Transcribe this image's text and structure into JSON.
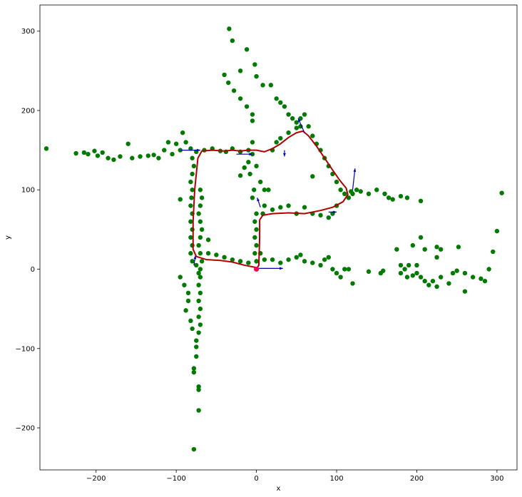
{
  "chart_data": {
    "type": "scatter",
    "title": "",
    "xlabel": "x",
    "ylabel": "y",
    "xlim": [
      -270,
      325
    ],
    "ylim": [
      -253,
      333
    ],
    "x_ticks": [
      -200,
      -100,
      0,
      100,
      200,
      300
    ],
    "y_ticks": [
      -200,
      -100,
      0,
      100,
      200,
      300
    ],
    "x_tick_labels": [
      "−200",
      "−100",
      "0",
      "100",
      "200",
      "300"
    ],
    "y_tick_labels": [
      "−200",
      "−100",
      "0",
      "100",
      "200",
      "300"
    ],
    "grid": false,
    "legend": false,
    "colors": {
      "points": "#007a00",
      "trajectory": "#b00000",
      "arrows": "#0000aa",
      "origin": "#ff0050"
    },
    "series": [
      {
        "kind": "scatter",
        "points": [
          [
            -262,
            152
          ],
          [
            -225,
            146
          ],
          [
            -215,
            147
          ],
          [
            -210,
            145
          ],
          [
            -202,
            149
          ],
          [
            -198,
            143
          ],
          [
            -192,
            147
          ],
          [
            -185,
            140
          ],
          [
            -178,
            138
          ],
          [
            -170,
            142
          ],
          [
            -160,
            158
          ],
          [
            -155,
            140
          ],
          [
            -145,
            142
          ],
          [
            -135,
            143
          ],
          [
            -128,
            144
          ],
          [
            -122,
            140
          ],
          [
            -115,
            150
          ],
          [
            -110,
            160
          ],
          [
            -105,
            145
          ],
          [
            -100,
            158
          ],
          [
            -95,
            150
          ],
          [
            -92,
            172
          ],
          [
            -88,
            160
          ],
          [
            -82,
            152
          ],
          [
            -75,
            148
          ],
          [
            -65,
            150
          ],
          [
            -55,
            152
          ],
          [
            -45,
            149
          ],
          [
            -38,
            148
          ],
          [
            -30,
            152
          ],
          [
            -20,
            148
          ],
          [
            -10,
            150
          ],
          [
            -5,
            187
          ],
          [
            -5,
            160
          ],
          [
            -5,
            145
          ],
          [
            -10,
            135
          ],
          [
            -15,
            128
          ],
          [
            -20,
            118
          ],
          [
            -8,
            120
          ],
          [
            0,
            130
          ],
          [
            5,
            110
          ],
          [
            10,
            100
          ],
          [
            15,
            100
          ],
          [
            20,
            150
          ],
          [
            25,
            160
          ],
          [
            30,
            165
          ],
          [
            40,
            172
          ],
          [
            50,
            178
          ],
          [
            55,
            190
          ],
          [
            60,
            195
          ],
          [
            65,
            180
          ],
          [
            70,
            168
          ],
          [
            75,
            158
          ],
          [
            80,
            150
          ],
          [
            85,
            140
          ],
          [
            90,
            130
          ],
          [
            95,
            120
          ],
          [
            100,
            110
          ],
          [
            105,
            100
          ],
          [
            110,
            95
          ],
          [
            115,
            90
          ],
          [
            118,
            98
          ],
          [
            120,
            95
          ],
          [
            125,
            100
          ],
          [
            130,
            98
          ],
          [
            140,
            95
          ],
          [
            150,
            100
          ],
          [
            160,
            95
          ],
          [
            165,
            90
          ],
          [
            170,
            88
          ],
          [
            180,
            92
          ],
          [
            188,
            90
          ],
          [
            205,
            86
          ],
          [
            306,
            96
          ],
          [
            -40,
            245
          ],
          [
            -35,
            235
          ],
          [
            -28,
            225
          ],
          [
            -20,
            215
          ],
          [
            -12,
            205
          ],
          [
            -5,
            195
          ],
          [
            -20,
            250
          ],
          [
            -30,
            288
          ],
          [
            -34,
            303
          ],
          [
            -12,
            277
          ],
          [
            -2,
            258
          ],
          [
            0,
            243
          ],
          [
            8,
            232
          ],
          [
            18,
            232
          ],
          [
            25,
            215
          ],
          [
            30,
            210
          ],
          [
            35,
            205
          ],
          [
            40,
            195
          ],
          [
            45,
            190
          ],
          [
            50,
            185
          ],
          [
            55,
            180
          ],
          [
            -80,
            140
          ],
          [
            -78,
            130
          ],
          [
            -80,
            120
          ],
          [
            -82,
            110
          ],
          [
            -80,
            100
          ],
          [
            -81,
            90
          ],
          [
            -82,
            80
          ],
          [
            -80,
            70
          ],
          [
            -82,
            60
          ],
          [
            -80,
            50
          ],
          [
            -82,
            40
          ],
          [
            -80,
            30
          ],
          [
            -82,
            20
          ],
          [
            -80,
            10
          ],
          [
            -75,
            5
          ],
          [
            -70,
            100
          ],
          [
            -68,
            90
          ],
          [
            -70,
            80
          ],
          [
            -72,
            70
          ],
          [
            -70,
            60
          ],
          [
            -68,
            50
          ],
          [
            -70,
            40
          ],
          [
            -72,
            30
          ],
          [
            -70,
            20
          ],
          [
            -68,
            10
          ],
          [
            -95,
            88
          ],
          [
            -60,
            37
          ],
          [
            -70,
            0
          ],
          [
            -72,
            -5
          ],
          [
            -70,
            -10
          ],
          [
            -72,
            -20
          ],
          [
            -70,
            -30
          ],
          [
            -72,
            -40
          ],
          [
            -70,
            -50
          ],
          [
            -72,
            -60
          ],
          [
            -70,
            -70
          ],
          [
            -72,
            -80
          ],
          [
            -75,
            -90
          ],
          [
            -75,
            -98
          ],
          [
            -75,
            -110
          ],
          [
            -78,
            -125
          ],
          [
            -78,
            -130
          ],
          [
            -72,
            -148
          ],
          [
            -72,
            -152
          ],
          [
            -72,
            -178
          ],
          [
            -78,
            -227
          ],
          [
            -85,
            -40
          ],
          [
            -88,
            -52
          ],
          [
            -82,
            -65
          ],
          [
            -80,
            -75
          ],
          [
            -85,
            -30
          ],
          [
            -90,
            -20
          ],
          [
            -95,
            -10
          ],
          [
            -60,
            20
          ],
          [
            -50,
            18
          ],
          [
            -40,
            15
          ],
          [
            -30,
            12
          ],
          [
            -20,
            10
          ],
          [
            -10,
            8
          ],
          [
            0,
            10
          ],
          [
            10,
            12
          ],
          [
            20,
            12
          ],
          [
            30,
            8
          ],
          [
            40,
            12
          ],
          [
            50,
            15
          ],
          [
            55,
            18
          ],
          [
            60,
            10
          ],
          [
            70,
            8
          ],
          [
            80,
            5
          ],
          [
            85,
            12
          ],
          [
            90,
            15
          ],
          [
            95,
            0
          ],
          [
            100,
            -5
          ],
          [
            105,
            -10
          ],
          [
            110,
            0
          ],
          [
            115,
            0
          ],
          [
            120,
            -18
          ],
          [
            0,
            70
          ],
          [
            -2,
            60
          ],
          [
            0,
            50
          ],
          [
            -2,
            40
          ],
          [
            0,
            30
          ],
          [
            -2,
            20
          ],
          [
            5,
            20
          ],
          [
            8,
            70
          ],
          [
            10,
            80
          ],
          [
            20,
            75
          ],
          [
            30,
            78
          ],
          [
            40,
            80
          ],
          [
            50,
            70
          ],
          [
            60,
            78
          ],
          [
            70,
            70
          ],
          [
            80,
            68
          ],
          [
            90,
            65
          ],
          [
            95,
            70
          ],
          [
            100,
            80
          ],
          [
            70,
            117
          ],
          [
            -5,
            90
          ],
          [
            -3,
            100
          ],
          [
            140,
            -3
          ],
          [
            155,
            -5
          ],
          [
            158,
            -2
          ],
          [
            175,
            25
          ],
          [
            180,
            -5
          ],
          [
            188,
            -10
          ],
          [
            195,
            -8
          ],
          [
            200,
            -5
          ],
          [
            205,
            -10
          ],
          [
            210,
            -15
          ],
          [
            215,
            -20
          ],
          [
            220,
            -15
          ],
          [
            225,
            -22
          ],
          [
            230,
            -10
          ],
          [
            240,
            -18
          ],
          [
            245,
            -5
          ],
          [
            250,
            -2
          ],
          [
            260,
            -5
          ],
          [
            270,
            -10
          ],
          [
            280,
            -12
          ],
          [
            285,
            -15
          ],
          [
            290,
            0
          ],
          [
            295,
            22
          ],
          [
            300,
            48
          ],
          [
            260,
            -28
          ],
          [
            252,
            28
          ],
          [
            225,
            28
          ],
          [
            205,
            40
          ],
          [
            210,
            25
          ],
          [
            195,
            30
          ],
          [
            190,
            5
          ],
          [
            200,
            5
          ],
          [
            185,
            0
          ],
          [
            180,
            5
          ],
          [
            230,
            25
          ],
          [
            225,
            15
          ]
        ]
      },
      {
        "kind": "trajectory",
        "points": [
          [
            0,
            0
          ],
          [
            3,
            5
          ],
          [
            4,
            40
          ],
          [
            4,
            62
          ],
          [
            8,
            68
          ],
          [
            20,
            70
          ],
          [
            40,
            71
          ],
          [
            60,
            70
          ],
          [
            80,
            74
          ],
          [
            95,
            78
          ],
          [
            108,
            85
          ],
          [
            114,
            94
          ],
          [
            112,
            102
          ],
          [
            104,
            112
          ],
          [
            95,
            125
          ],
          [
            85,
            140
          ],
          [
            75,
            155
          ],
          [
            65,
            168
          ],
          [
            58,
            174
          ],
          [
            50,
            172
          ],
          [
            40,
            166
          ],
          [
            30,
            158
          ],
          [
            20,
            152
          ],
          [
            10,
            148
          ],
          [
            0,
            150
          ],
          [
            -10,
            150
          ],
          [
            -20,
            149
          ],
          [
            -30,
            150
          ],
          [
            -40,
            149
          ],
          [
            -55,
            150
          ],
          [
            -68,
            149
          ],
          [
            -73,
            140
          ],
          [
            -75,
            120
          ],
          [
            -77,
            100
          ],
          [
            -78,
            80
          ],
          [
            -79,
            60
          ],
          [
            -79,
            40
          ],
          [
            -79,
            25
          ],
          [
            -75,
            16
          ],
          [
            -62,
            12
          ],
          [
            -45,
            11
          ],
          [
            -30,
            9
          ],
          [
            -15,
            5
          ],
          [
            0,
            2
          ]
        ]
      },
      {
        "kind": "arrows",
        "vectors": [
          [
            -95,
            150,
            25,
            0
          ],
          [
            -25,
            145,
            20,
            0
          ],
          [
            5,
            78,
            -4,
            12
          ],
          [
            90,
            72,
            10,
            0
          ],
          [
            120,
            100,
            3,
            27
          ],
          [
            60,
            172,
            -8,
            18
          ],
          [
            35,
            150,
            0,
            -8
          ],
          [
            -2,
            1,
            35,
            0
          ],
          [
            -78,
            5,
            2,
            12
          ]
        ]
      }
    ]
  }
}
